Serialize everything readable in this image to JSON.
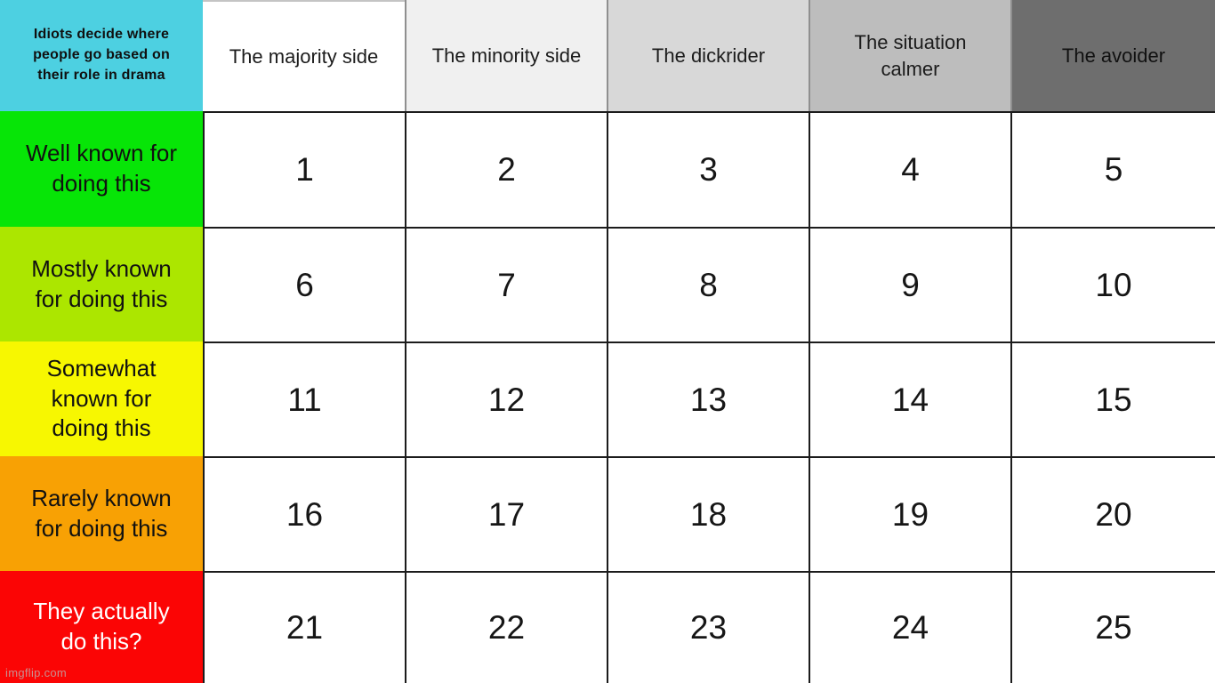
{
  "chart_data": {
    "type": "table",
    "title": "Idiots decide where people go based on their role in drama",
    "columns": [
      "The majority side",
      "The minority side",
      "The dickrider",
      "The situation calmer",
      "The avoider"
    ],
    "rows": [
      "Well known for doing this",
      "Mostly known for doing this",
      "Somewhat known for doing this",
      "Rarely known for doing this",
      "They actually do this?"
    ],
    "values": [
      [
        1,
        2,
        3,
        4,
        5
      ],
      [
        6,
        7,
        8,
        9,
        10
      ],
      [
        11,
        12,
        13,
        14,
        15
      ],
      [
        16,
        17,
        18,
        19,
        20
      ],
      [
        21,
        22,
        23,
        24,
        25
      ]
    ]
  },
  "title_cell": {
    "text": "Idiots decide where\npeople go based on\ntheir role in drama",
    "bg": "#4dd0e1",
    "text_color": "#101010"
  },
  "columns": [
    {
      "label": "The majority side",
      "bg": "#ffffff",
      "text_color": "#1c1c1c"
    },
    {
      "label": "The minority side",
      "bg": "#f0f0f0",
      "text_color": "#1c1c1c"
    },
    {
      "label": "The dickrider",
      "bg": "#d8d8d8",
      "text_color": "#1c1c1c"
    },
    {
      "label": "The situation\ncalmer",
      "bg": "#bdbdbd",
      "text_color": "#1c1c1c"
    },
    {
      "label": "The avoider",
      "bg": "#6e6e6e",
      "text_color": "#111111"
    }
  ],
  "rows": [
    {
      "label": "Well known for\ndoing this",
      "bg": "#07e507",
      "text_color": "#111111"
    },
    {
      "label": "Mostly known\nfor doing this",
      "bg": "#ace600",
      "text_color": "#111111"
    },
    {
      "label": "Somewhat\nknown for\ndoing this",
      "bg": "#f7f701",
      "text_color": "#111111"
    },
    {
      "label": "Rarely known\nfor doing this",
      "bg": "#f8a104",
      "text_color": "#111111"
    },
    {
      "label": "They actually\ndo this?",
      "bg": "#fb0505",
      "text_color": "#ffffff"
    }
  ],
  "watermark": {
    "text": "imgflip.com",
    "color": "#c98f8f"
  }
}
